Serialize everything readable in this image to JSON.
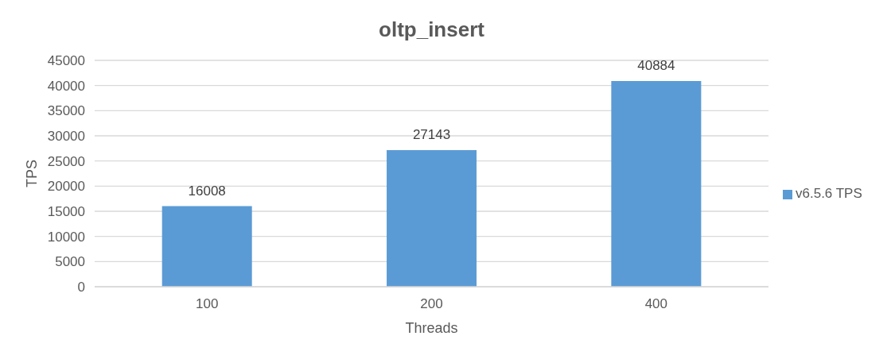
{
  "chart_data": {
    "type": "bar",
    "title": "oltp_insert",
    "xlabel": "Threads",
    "ylabel": "TPS",
    "categories": [
      "100",
      "200",
      "400"
    ],
    "series": [
      {
        "name": "v6.5.6 TPS",
        "color": "#5b9bd5",
        "values": [
          16008,
          27143,
          40884
        ]
      }
    ],
    "ylim": [
      0,
      45000
    ],
    "yticks": [
      0,
      5000,
      10000,
      15000,
      20000,
      25000,
      30000,
      35000,
      40000,
      45000
    ],
    "grid": "y",
    "legend": "right",
    "data_labels": true
  }
}
